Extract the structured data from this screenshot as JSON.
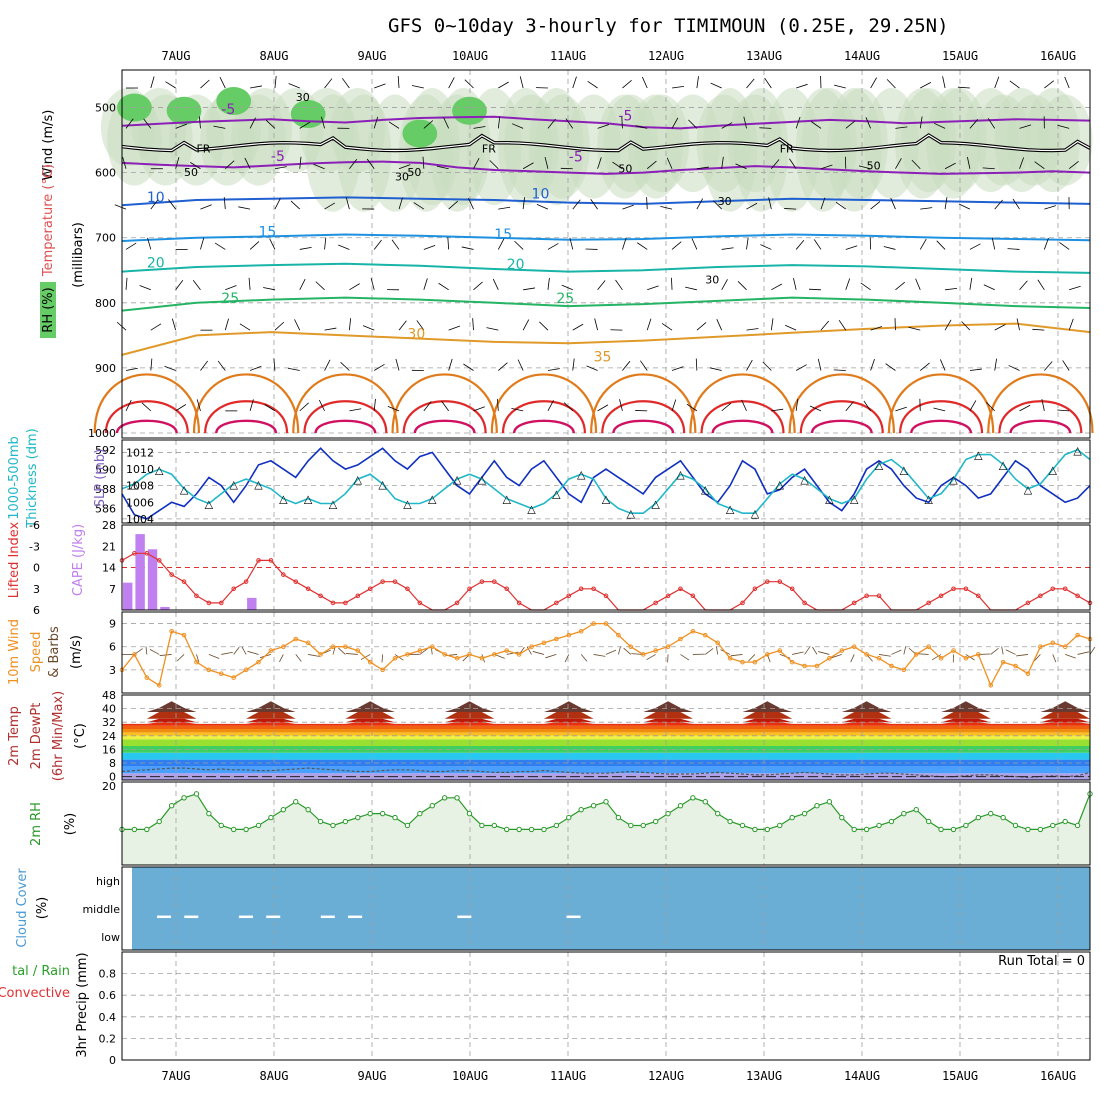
{
  "title": "GFS 0~10day 3-hourly for TIMIMOUN (0.25E, 29.25N)",
  "dates": [
    "7AUG",
    "8AUG",
    "9AUG",
    "10AUG",
    "11AUG",
    "12AUG",
    "13AUG",
    "14AUG",
    "15AUG",
    "16AUG"
  ],
  "run_total": "Run Total = 0",
  "colors": {
    "temp_neg": "#8c1fb8",
    "temp_10": "#1f5fd0",
    "temp_15": "#1e90e0",
    "temp_20": "#18b4a8",
    "temp_25": "#24b464",
    "temp_30": "#e09a2a",
    "temp_35": "#e07a1a",
    "temp_40": "#e02a2a",
    "slp": "#1030c0",
    "thickness": "#20b8c8",
    "lifted": "#e03030",
    "cape": "#c080f0",
    "wind": "#f09020",
    "rh": "#2a9a2a",
    "cloud": "#6aaed6",
    "freeze": "#000000",
    "rh_fill": "#c8dcc0"
  },
  "chart_data": [
    {
      "type": "line",
      "panel": "upper_air",
      "ylabel_parts": [
        "Wind (m/s)",
        "Temperature (°C)",
        "RH (%)",
        "(millibars)"
      ],
      "y_ticks": [
        "500",
        "600",
        "700",
        "800",
        "900",
        "1000"
      ],
      "ylim": [
        1000,
        450
      ],
      "isotherm_labels": [
        "-5",
        "-5",
        "-5",
        "-5",
        "10",
        "10",
        "15",
        "15",
        "20",
        "20",
        "25",
        "25",
        "30",
        "35"
      ],
      "freezing_level_label": "FR",
      "rh_contour_labels": [
        "30",
        "30",
        "30",
        "30",
        "50",
        "50",
        "50",
        "50"
      ],
      "isotherms": [
        {
          "t": -5,
          "x": [
            0,
            3,
            6,
            9,
            12,
            15,
            18,
            21,
            24,
            27,
            30,
            33,
            36,
            39,
            42,
            45,
            48,
            51,
            54,
            57,
            60,
            63,
            66,
            69,
            72,
            75,
            78
          ],
          "p": [
            528,
            525,
            522,
            520,
            518,
            521,
            523,
            519,
            516,
            515,
            514,
            518,
            521,
            524,
            530,
            532,
            528,
            525,
            522,
            519,
            521,
            524,
            522,
            520,
            518,
            519,
            520
          ]
        },
        {
          "t": -5,
          "x": [
            0,
            3,
            6,
            9,
            12,
            15,
            18,
            21,
            24,
            27,
            30,
            33,
            36,
            39,
            42,
            45,
            48,
            51,
            54,
            57,
            60,
            63,
            66,
            69,
            72,
            75,
            78
          ],
          "p": [
            585,
            588,
            590,
            592,
            589,
            586,
            584,
            583,
            585,
            592,
            596,
            598,
            600,
            602,
            600,
            596,
            593,
            590,
            592,
            595,
            598,
            600,
            602,
            601,
            600,
            598,
            600
          ]
        },
        {
          "t": 10,
          "x": [
            0,
            6,
            12,
            18,
            24,
            30,
            36,
            42,
            48,
            54,
            60,
            66,
            72,
            78
          ],
          "p": [
            650,
            642,
            640,
            638,
            640,
            642,
            646,
            648,
            644,
            640,
            642,
            644,
            646,
            648
          ]
        },
        {
          "t": 15,
          "x": [
            0,
            6,
            12,
            18,
            24,
            30,
            36,
            42,
            48,
            54,
            60,
            66,
            72,
            78
          ],
          "p": [
            705,
            700,
            698,
            695,
            697,
            700,
            703,
            702,
            698,
            695,
            697,
            700,
            702,
            704
          ]
        },
        {
          "t": 20,
          "x": [
            0,
            6,
            12,
            18,
            24,
            30,
            36,
            42,
            48,
            54,
            60,
            66,
            72,
            78
          ],
          "p": [
            752,
            745,
            742,
            740,
            743,
            748,
            752,
            750,
            745,
            742,
            744,
            748,
            752,
            754
          ]
        },
        {
          "t": 25,
          "x": [
            0,
            6,
            12,
            18,
            24,
            30,
            36,
            42,
            48,
            54,
            60,
            66,
            72,
            78
          ],
          "p": [
            812,
            800,
            795,
            792,
            795,
            800,
            805,
            802,
            797,
            792,
            795,
            800,
            805,
            808
          ]
        },
        {
          "t": 30,
          "x": [
            0,
            6,
            12,
            18,
            24,
            30,
            36,
            42,
            48,
            54,
            60,
            66,
            72,
            78
          ],
          "p": [
            880,
            850,
            845,
            850,
            855,
            860,
            862,
            858,
            852,
            846,
            840,
            835,
            832,
            845
          ]
        }
      ]
    },
    {
      "type": "line",
      "panel": "slp_thickness",
      "ylabel_parts": [
        "1000-500mb",
        "Thickness (dm)",
        "SLP (mb)"
      ],
      "left_ticks": [
        "592",
        "590",
        "588",
        "586"
      ],
      "right_ticks": [
        "1012",
        "1010",
        "1008",
        "1006",
        "1004"
      ],
      "slp_ylim": [
        1003.5,
        1013.5
      ],
      "thickness_ylim": [
        584.5,
        593
      ],
      "series": [
        {
          "axis": "slp",
          "values": [
            1007,
            1004.5,
            1004,
            1005,
            1006,
            1005.5,
            1007,
            1009,
            1008,
            1006,
            1008,
            1010.5,
            1011,
            1010,
            1009,
            1011,
            1012.5,
            1011,
            1010,
            1010.5,
            1011.5,
            1012.5,
            1011,
            1010,
            1011.5,
            1012,
            1010,
            1008,
            1007,
            1009,
            1011,
            1009,
            1008,
            1010,
            1011,
            1009,
            1007,
            1006,
            1009,
            1010,
            1009,
            1008,
            1007,
            1009,
            1010,
            1011,
            1009,
            1007,
            1006,
            1008,
            1011,
            1010,
            1007,
            1007.5,
            1009,
            1010,
            1008,
            1006,
            1005,
            1007,
            1010,
            1011,
            1010,
            1008,
            1006.5,
            1006,
            1008,
            1009,
            1008,
            1006.5,
            1007,
            1009,
            1011,
            1010,
            1008,
            1007,
            1006,
            1006.5,
            1008
          ]
        },
        {
          "axis": "thickness",
          "values": [
            588,
            588.5,
            589.5,
            590,
            589.5,
            588,
            587,
            586.5,
            587.5,
            588.5,
            589,
            588.5,
            588,
            587,
            586.5,
            587,
            586.5,
            586.5,
            587.5,
            589,
            589.5,
            588.5,
            587,
            586.5,
            586.5,
            587,
            588,
            589,
            589.5,
            589,
            588,
            587,
            586.5,
            586,
            586.5,
            587.5,
            589,
            589.5,
            589,
            587,
            586,
            585.5,
            585.5,
            586.5,
            588,
            589.5,
            589,
            588,
            586.5,
            586,
            585.5,
            585.5,
            587,
            588.5,
            589.5,
            589,
            588,
            587,
            586.5,
            587,
            589,
            590.5,
            591,
            590,
            588.5,
            587,
            587.5,
            589,
            591,
            591.5,
            591.5,
            590.5,
            589,
            588,
            588.5,
            590,
            591.5,
            592,
            591
          ]
        }
      ]
    },
    {
      "type": "line",
      "panel": "stability",
      "ylabel_parts": [
        "Lifted Index",
        "CAPE (J/kg)"
      ],
      "li_ticks": [
        "-6",
        "-3",
        "0",
        "3",
        "6"
      ],
      "cape_ticks": [
        "28",
        "21",
        "14",
        "7"
      ],
      "li_ylim": [
        -6,
        6
      ],
      "cape_ylim": [
        0,
        28
      ],
      "lifted_index": [
        -1,
        -2,
        -2,
        -1,
        1,
        2,
        4,
        5,
        5,
        3,
        2,
        -1,
        -1,
        1,
        2,
        3,
        4,
        5,
        5,
        4,
        3,
        2,
        2,
        3,
        5,
        6,
        6,
        5,
        3,
        2,
        2,
        3,
        5,
        6,
        6,
        5,
        4,
        3,
        3,
        4,
        6,
        6,
        6,
        5,
        4,
        3,
        4,
        6,
        6,
        6,
        5,
        3,
        2,
        2,
        3,
        5,
        6,
        6,
        6,
        5,
        4,
        4,
        6,
        6,
        6,
        5,
        4,
        3,
        3,
        4,
        6,
        6,
        6,
        5,
        4,
        3,
        3,
        4,
        5
      ],
      "cape_bars": [
        {
          "x": 0,
          "v": 9
        },
        {
          "x": 1,
          "v": 25
        },
        {
          "x": 2,
          "v": 20
        },
        {
          "x": 3,
          "v": 1
        },
        {
          "x": 10,
          "v": 4
        }
      ]
    },
    {
      "type": "line",
      "panel": "wind10m",
      "ylabel_parts": [
        "10m Wind",
        "Speed",
        "& Barbs",
        "(m/s)"
      ],
      "y_ticks": [
        "9",
        "6",
        "3"
      ],
      "ylim": [
        0,
        10.5
      ],
      "values": [
        3,
        5,
        2,
        1,
        8,
        7.5,
        4,
        3,
        2.5,
        2,
        3,
        4,
        5.5,
        6,
        7,
        6.5,
        5,
        6,
        6,
        5.5,
        4,
        3,
        4.5,
        5,
        5.5,
        6,
        5,
        4.5,
        5,
        4.5,
        5,
        5.5,
        5,
        6,
        6.5,
        7,
        7.5,
        8,
        9,
        9,
        7.5,
        6,
        5,
        5.5,
        6,
        7,
        8,
        7.5,
        6.5,
        4.5,
        4,
        4,
        5,
        5.5,
        4,
        3.5,
        3.5,
        4.5,
        5.5,
        6,
        5,
        4.5,
        3.5,
        3,
        5,
        6,
        4.5,
        5.5,
        4.5,
        5,
        1,
        4,
        3.5,
        2.5,
        6,
        6.5,
        6,
        7.5,
        7
      ]
    },
    {
      "type": "area",
      "panel": "temp2m",
      "ylabel_parts": [
        "2m Temp",
        "2m DewPt",
        "(6hr Min/Max)",
        "(°C)"
      ],
      "y_ticks": [
        "48",
        "40",
        "32",
        "24",
        "16",
        "8",
        "0"
      ],
      "ylim": [
        -2,
        48
      ],
      "temp_min": 31,
      "temp_max": 45,
      "dewpoint": [
        3,
        3.5,
        4,
        4.5,
        5,
        5,
        4.5,
        4,
        4.5,
        4,
        4,
        3.5,
        3.5,
        4,
        4.5,
        5,
        4.5,
        4,
        3.5,
        3,
        3,
        3.5,
        4,
        4,
        3.5,
        3,
        3,
        3.5,
        3.5,
        3,
        2.5,
        2.5,
        3,
        3,
        3.5,
        3,
        2.5,
        2,
        2,
        2,
        2.5,
        3,
        2.5,
        2,
        1.5,
        1.5,
        1.5,
        2,
        2.5,
        2,
        1.5,
        1,
        1,
        1.5,
        2,
        2.5,
        2,
        1.5,
        1,
        1,
        1.5,
        2,
        2,
        1.5,
        1,
        0.5,
        0,
        0,
        0.5,
        1,
        1,
        0.5,
        0,
        -0.5,
        0,
        0.5,
        0,
        0.5,
        2.5
      ],
      "colors": [
        "#b0a0e8",
        "#4aa0ff",
        "#2f7ff0",
        "#28c8f0",
        "#40d060",
        "#9ae030",
        "#f0f040",
        "#f8c020",
        "#f08c10",
        "#f06010",
        "#e83010",
        "#c01808",
        "#b03010",
        "#6a3a30"
      ]
    },
    {
      "type": "line",
      "panel": "rh2m",
      "ylabel_parts": [
        "2m RH",
        "(%)"
      ],
      "y_ticks": [
        "20"
      ],
      "ylim": [
        0,
        21
      ],
      "values": [
        9,
        9,
        9,
        11,
        15,
        17,
        18,
        13,
        10,
        9,
        9,
        10,
        12,
        14,
        16,
        14,
        11,
        10,
        11,
        12,
        13,
        13,
        12,
        10,
        13,
        15,
        17,
        17,
        13,
        10,
        10,
        9,
        9,
        9,
        9,
        10,
        12,
        14,
        15,
        16,
        12,
        10,
        10,
        11,
        13,
        15,
        17,
        16,
        13,
        11,
        10,
        9,
        9,
        10,
        12,
        13,
        15,
        16,
        12,
        9,
        9,
        10,
        11,
        13,
        14,
        11,
        9,
        9,
        10,
        12,
        13,
        12,
        10,
        9,
        9,
        10,
        11,
        10,
        18
      ]
    },
    {
      "type": "heatmap",
      "panel": "cloud",
      "ylabel_parts": [
        "Cloud Cover",
        "(%)"
      ],
      "levels": [
        "high",
        "middle",
        "low"
      ],
      "middle_dash_steps": [
        0,
        1,
        3,
        4,
        6,
        7,
        11,
        15
      ]
    },
    {
      "type": "bar",
      "panel": "precip",
      "ylabel_parts": [
        "3hr Precip (mm)",
        "tal / Rain",
        "Convective"
      ],
      "y_ticks": [
        "0.8",
        "0.6",
        "0.4",
        "0.2",
        "0"
      ],
      "ylim": [
        0,
        1
      ],
      "values": []
    }
  ]
}
